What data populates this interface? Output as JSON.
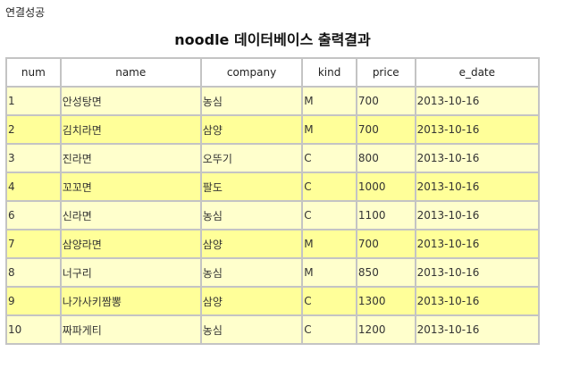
{
  "status_text": "연결성공",
  "title": "noodle 데이터베이스 출력결과",
  "colors": {
    "row_light": "#ffffcc",
    "row_dark": "#ffff99",
    "border": "#c4c4c4"
  },
  "table": {
    "headers": [
      "num",
      "name",
      "company",
      "kind",
      "price",
      "e_date"
    ],
    "rows": [
      [
        "1",
        "안성탕면",
        "농심",
        "M",
        "700",
        "2013-10-16"
      ],
      [
        "2",
        "김치라면",
        "삼양",
        "M",
        "700",
        "2013-10-16"
      ],
      [
        "3",
        "진라면",
        "오뚜기",
        "C",
        "800",
        "2013-10-16"
      ],
      [
        "4",
        "꼬꼬면",
        "팔도",
        "C",
        "1000",
        "2013-10-16"
      ],
      [
        "6",
        "신라면",
        "농심",
        "C",
        "1100",
        "2013-10-16"
      ],
      [
        "7",
        "삼양라면",
        "삼양",
        "M",
        "700",
        "2013-10-16"
      ],
      [
        "8",
        "너구리",
        "농심",
        "M",
        "850",
        "2013-10-16"
      ],
      [
        "9",
        "나가사키짬뽕",
        "삼양",
        "C",
        "1300",
        "2013-10-16"
      ],
      [
        "10",
        "짜파게티",
        "농심",
        "C",
        "1200",
        "2013-10-16"
      ]
    ]
  }
}
